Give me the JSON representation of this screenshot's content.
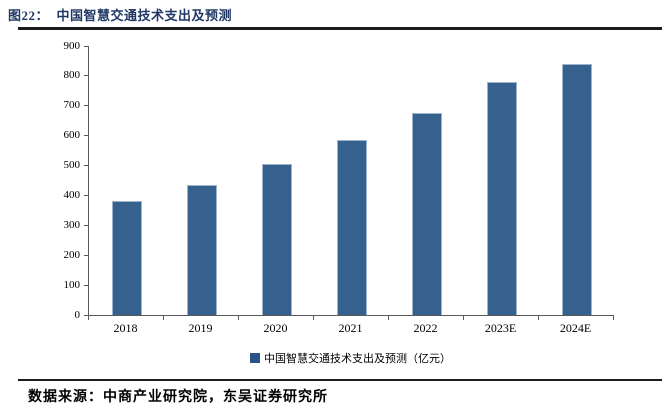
{
  "header": {
    "title": "图22：  中国智慧交通技术支出及预测"
  },
  "footer": {
    "source": "数据来源：中商产业研究院，东吴证券研究所"
  },
  "chart_data": {
    "type": "bar",
    "title": "中国智慧交通技术支出及预测",
    "categories": [
      "2018",
      "2019",
      "2020",
      "2021",
      "2022",
      "2023E",
      "2024E"
    ],
    "series": [
      {
        "name": "中国智慧交通技术支出及预测（亿元）",
        "values": [
          380,
          435,
          505,
          585,
          675,
          780,
          840
        ]
      }
    ],
    "unit": "亿元",
    "xlabel": "",
    "ylabel": "",
    "ylim": [
      0,
      900
    ],
    "yticks": [
      0,
      100,
      200,
      300,
      400,
      500,
      600,
      700,
      800,
      900
    ],
    "grid": false,
    "legend_position": "bottom",
    "legend_label": "中国智慧交通技术支出及预测（亿元）"
  },
  "colors": {
    "title": "#1F3864",
    "bar_fill": "#36618F",
    "bar_edge": "#9DB4CD",
    "legend_swatch": "#2B5387",
    "axis": "#595959",
    "rule": "#1C1C1C",
    "text": "#000000"
  }
}
